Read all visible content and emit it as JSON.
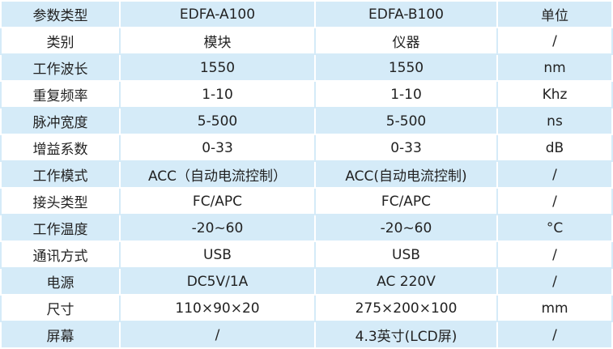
{
  "table": {
    "header": [
      "参数类型",
      "EDFA-A100",
      "EDFA-B100",
      "单位"
    ],
    "rows": [
      [
        "类别",
        "模块",
        "仪器",
        "/"
      ],
      [
        "工作波长",
        "1550",
        "1550",
        "nm"
      ],
      [
        "重复频率",
        "1-10",
        "1-10",
        "Khz"
      ],
      [
        "脉冲宽度",
        "5-500",
        "5-500",
        "ns"
      ],
      [
        "增益系数",
        "0-33",
        "0-33",
        "dB"
      ],
      [
        "工作模式",
        "ACC（自动电流控制）",
        "ACC(自动电流控制)",
        "/"
      ],
      [
        "接头类型",
        "FC/APC",
        "FC/APC",
        "/"
      ],
      [
        "工作温度",
        "-20~60",
        "-20~60",
        "°C"
      ],
      [
        "通讯方式",
        "USB",
        "USB",
        "/"
      ],
      [
        "电源",
        "DC5V/1A",
        "AC 220V",
        "/"
      ],
      [
        "尺寸",
        "110×90×20",
        "275×200×100",
        "mm"
      ],
      [
        "屏幕",
        "/",
        "4.3英寸(LCD屏)",
        "/"
      ]
    ]
  }
}
